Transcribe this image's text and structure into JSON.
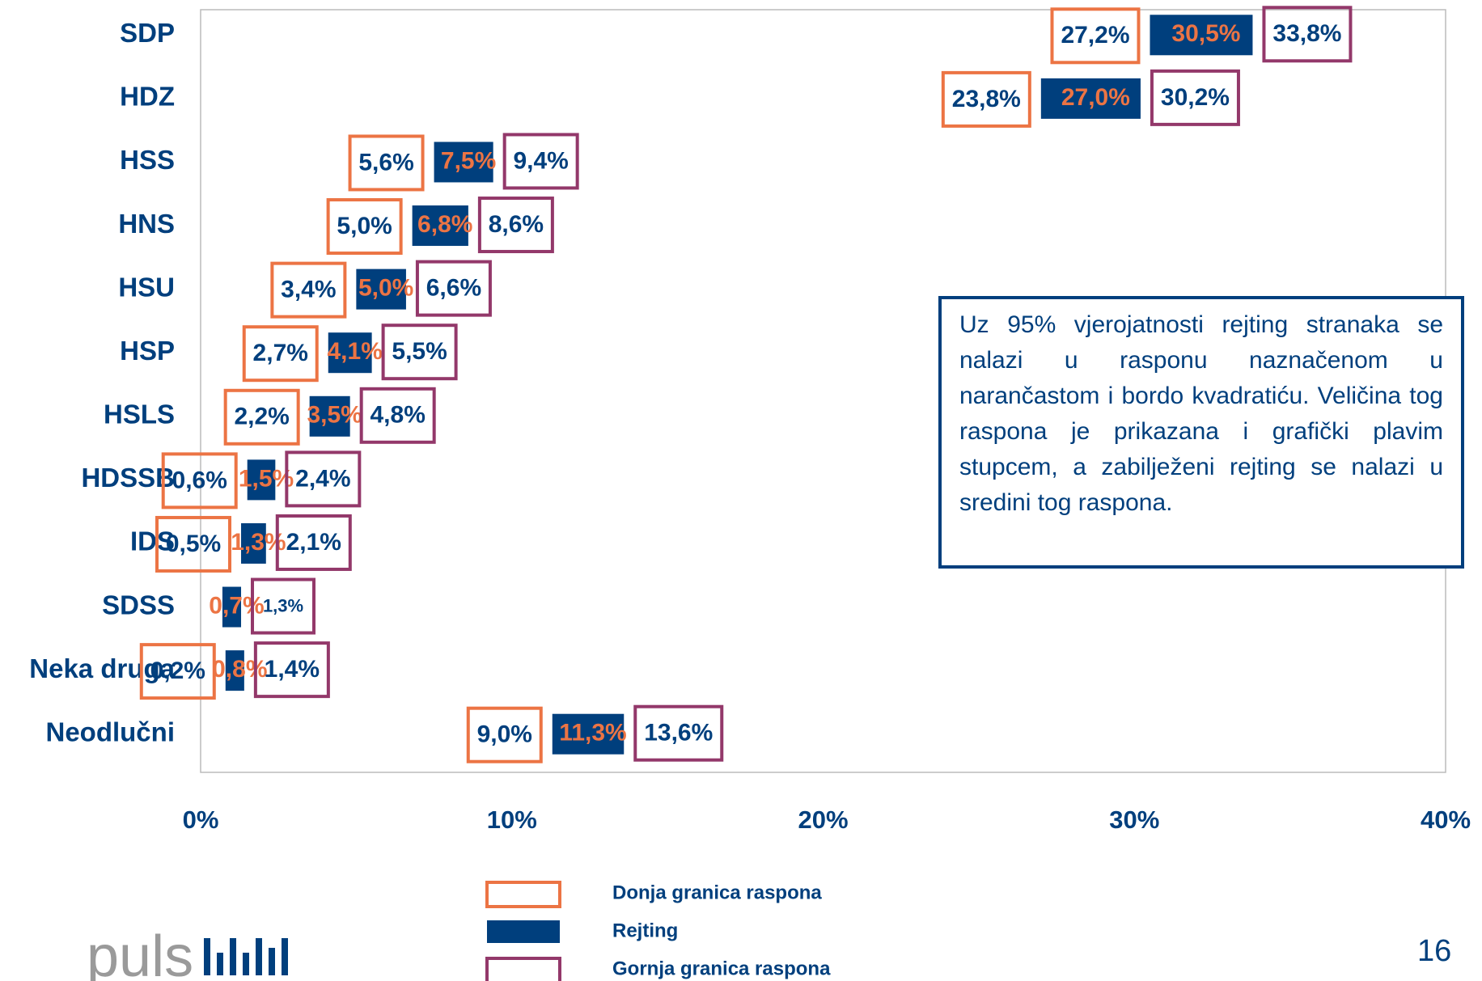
{
  "chart_data": {
    "type": "range-bar",
    "orientation": "horizontal",
    "categories": [
      "SDP",
      "HDZ",
      "HSS",
      "HNS",
      "HSU",
      "HSP",
      "HSLS",
      "HDSSB",
      "IDS",
      "SDSS",
      "Neka druga",
      "Neodlučni"
    ],
    "series": [
      {
        "name": "Donja granica raspona",
        "color": "#ec7444",
        "values": [
          27.2,
          23.8,
          5.6,
          5.0,
          3.4,
          2.7,
          2.2,
          0.6,
          0.5,
          null,
          0.2,
          9.0
        ],
        "value_labels": [
          "27,2%",
          "23,8%",
          "5,6%",
          "5,0%",
          "3,4%",
          "2,7%",
          "2,2%",
          "0,6%",
          "0,5%",
          null,
          "0,2%",
          "9,0%"
        ]
      },
      {
        "name": "Rejting",
        "color": "#003f7d",
        "label_color": "#ec7444",
        "values": [
          30.5,
          27.0,
          7.5,
          6.8,
          5.0,
          4.1,
          3.5,
          1.5,
          1.3,
          0.7,
          0.8,
          11.3
        ],
        "value_labels": [
          "30,5%",
          "27,0%",
          "7,5%",
          "6,8%",
          "5,0%",
          "4,1%",
          "3,5%",
          "1,5%",
          "1,3%",
          "0,7%",
          "0,8%",
          "11,3%"
        ]
      },
      {
        "name": "Gornja granica raspona",
        "color": "#93386a",
        "values": [
          33.8,
          30.2,
          9.4,
          8.6,
          6.6,
          5.5,
          4.8,
          2.4,
          2.1,
          1.3,
          1.4,
          13.6
        ],
        "value_labels": [
          "33,8%",
          "30,2%",
          "9,4%",
          "8,6%",
          "6,6%",
          "5,5%",
          "4,8%",
          "2,4%",
          "2,1%",
          "1,3%",
          "1,4%",
          "13,6%"
        ]
      }
    ],
    "xlim": [
      0,
      40
    ],
    "xticks": [
      {
        "value": 0,
        "label": "0%"
      },
      {
        "value": 10,
        "label": "10%"
      },
      {
        "value": 20,
        "label": "20%"
      },
      {
        "value": 30,
        "label": "30%"
      },
      {
        "value": 40,
        "label": "40%"
      }
    ],
    "grid": false,
    "legend": "bottom"
  },
  "note": "Uz 95% vjerojatnosti rejting stranaka se nalazi u rasponu naznačenom u narančastom i bordo kvadratiću. Veličina tog raspona je prikazana i grafički plavim stupcem, a zabilježeni rejting se nalazi u sredini tog raspona.",
  "logo": "puls",
  "page_number": "16"
}
